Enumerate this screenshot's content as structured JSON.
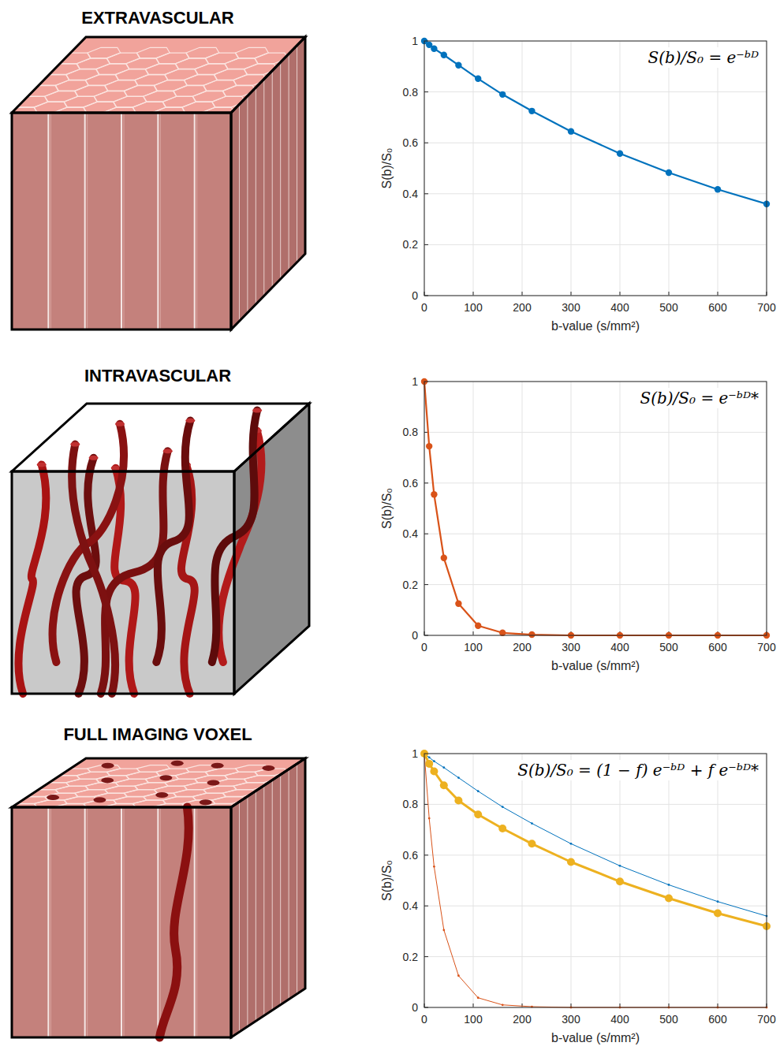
{
  "chart_data": [
    {
      "type": "line",
      "title": "EXTRAVASCULAR",
      "annotation": "S(b)/S₀ = e⁻ᵇᴰ",
      "xlabel": "b-value (s/mm²)",
      "ylabel": "S(b)/S₀",
      "x": [
        0,
        10,
        20,
        40,
        70,
        110,
        160,
        220,
        300,
        400,
        500,
        600,
        700
      ],
      "series": [
        {
          "color": "#0072bd",
          "marker": "circle",
          "line_style": "solid",
          "values": [
            1,
            0.985,
            0.97,
            0.945,
            0.905,
            0.852,
            0.79,
            0.725,
            0.645,
            0.558,
            0.483,
            0.417,
            0.36
          ]
        }
      ],
      "xlim": [
        0,
        700
      ],
      "xticks": [
        0,
        100,
        200,
        300,
        400,
        500,
        600,
        700
      ],
      "ylim": [
        0,
        1
      ],
      "yticks": [
        0,
        0.2,
        0.4,
        0.6,
        0.8,
        1
      ],
      "grid": true
    },
    {
      "type": "line",
      "title": "INTRAVASCULAR",
      "annotation": "S(b)/S₀ = e⁻ᵇᴰ*",
      "xlabel": "b-value (s/mm²)",
      "ylabel": "S(b)/S₀",
      "x": [
        0,
        10,
        20,
        40,
        70,
        110,
        160,
        220,
        300,
        400,
        500,
        600,
        700
      ],
      "series": [
        {
          "color": "#d95319",
          "marker": "circle",
          "line_style": "solid",
          "values": [
            1,
            0.745,
            0.555,
            0.305,
            0.125,
            0.038,
            0.01,
            0.003,
            0,
            0,
            0,
            0,
            0
          ]
        }
      ],
      "xlim": [
        0,
        700
      ],
      "xticks": [
        0,
        100,
        200,
        300,
        400,
        500,
        600,
        700
      ],
      "ylim": [
        0,
        1
      ],
      "yticks": [
        0,
        0.2,
        0.4,
        0.6,
        0.8,
        1
      ],
      "grid": true
    },
    {
      "type": "line",
      "title": "FULL IMAGING VOXEL",
      "annotation": "S(b)/S₀ = (1 − f) e⁻ᵇᴰ + f e⁻ᵇᴰ*",
      "xlabel": "b-value (s/mm²)",
      "ylabel": "S(b)/S₀",
      "x": [
        0,
        10,
        20,
        40,
        70,
        110,
        160,
        220,
        300,
        400,
        500,
        600,
        700
      ],
      "series": [
        {
          "color": "#0072bd",
          "marker": "point",
          "line_style": "thin",
          "values": [
            1,
            0.985,
            0.97,
            0.945,
            0.905,
            0.852,
            0.79,
            0.725,
            0.645,
            0.558,
            0.483,
            0.417,
            0.36
          ]
        },
        {
          "color": "#d95319",
          "marker": "point",
          "line_style": "thin",
          "values": [
            1,
            0.745,
            0.555,
            0.305,
            0.125,
            0.038,
            0.01,
            0.003,
            0,
            0,
            0,
            0,
            0
          ]
        },
        {
          "color": "#edb120",
          "marker": "circle",
          "line_style": "thick",
          "values": [
            1,
            0.96,
            0.93,
            0.875,
            0.815,
            0.76,
            0.705,
            0.645,
            0.573,
            0.496,
            0.43,
            0.371,
            0.32
          ]
        }
      ],
      "xlim": [
        0,
        700
      ],
      "xticks": [
        0,
        100,
        200,
        300,
        400,
        500,
        600,
        700
      ],
      "ylim": [
        0,
        1
      ],
      "yticks": [
        0,
        0.2,
        0.4,
        0.6,
        0.8,
        1
      ],
      "grid": true
    }
  ]
}
